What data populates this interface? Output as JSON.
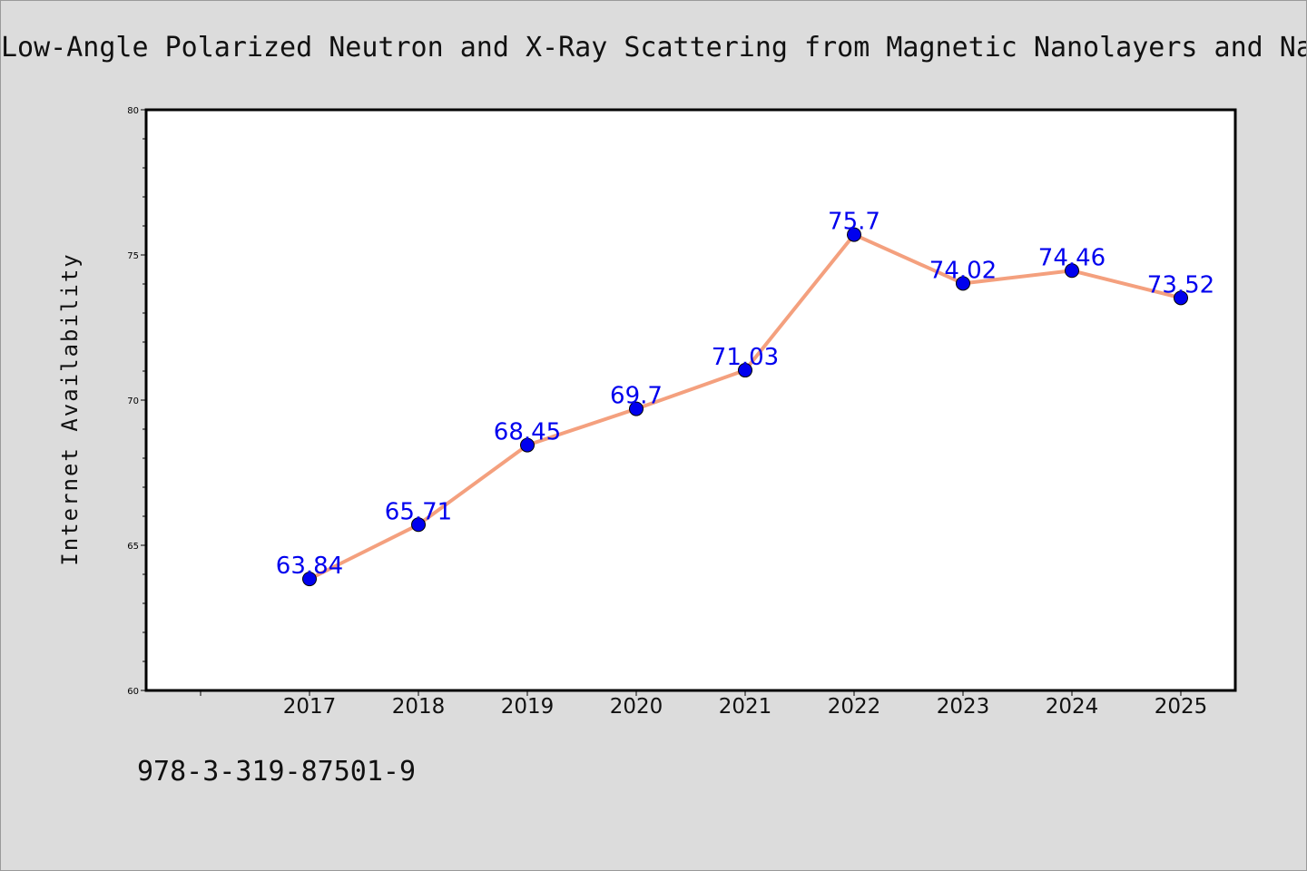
{
  "chart_data": {
    "type": "line",
    "title": "Low-Angle Polarized Neutron and X-Ray Scattering from Magnetic Nanolayers and Na",
    "xlabel": "",
    "ylabel": "Internet Availability",
    "categories": [
      "2017",
      "2018",
      "2019",
      "2020",
      "2021",
      "2022",
      "2023",
      "2024",
      "2025"
    ],
    "series": [
      {
        "values": [
          63.84,
          65.71,
          68.45,
          69.7,
          71.03,
          75.7,
          74.02,
          74.46,
          73.52
        ],
        "data_labels": [
          "63.84",
          "65.71",
          "68.45",
          "69.7",
          "71.03",
          "75.7",
          "74.02",
          "74.46",
          "73.52"
        ],
        "line_color": "#f4a07e",
        "marker_color": "#0000ee",
        "label_color": "#0000ee"
      }
    ],
    "ylim": [
      60,
      80
    ],
    "yticks": [
      "60",
      "65",
      "70",
      "75",
      "80"
    ],
    "grid": false,
    "legend": "none"
  },
  "footer": {
    "code": "978-3-319-87501-9"
  }
}
